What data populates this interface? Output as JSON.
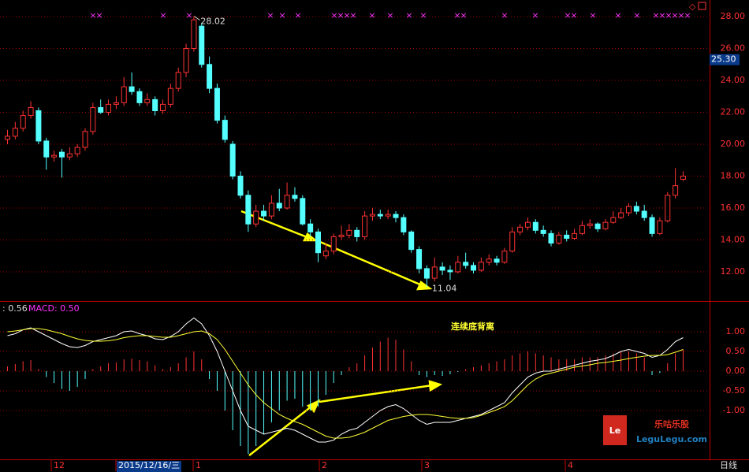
{
  "chart_data": [
    {
      "type": "candlestick",
      "up_color": "#ff3232",
      "down_color": "#54ffff",
      "grid": true,
      "ylim": [
        10.17,
        29.04
      ],
      "yticks": [
        {
          "value": 12,
          "label": "12.00"
        },
        {
          "value": 14,
          "label": "14.00"
        },
        {
          "value": 16,
          "label": "16.00"
        },
        {
          "value": 18,
          "label": "18.00"
        },
        {
          "value": 20,
          "label": "20.00"
        },
        {
          "value": 22,
          "label": "22.00"
        },
        {
          "value": 24,
          "label": "24.00"
        },
        {
          "value": 26,
          "label": "26.00"
        },
        {
          "value": 28,
          "label": "28.00"
        }
      ],
      "price_marker": {
        "value": 25.3,
        "label": "25.30"
      },
      "high_label": "28.02",
      "low_label": "11.04",
      "annotation": "连续底背离",
      "xlabels": [
        "12",
        "2015/12/16/三",
        "1",
        "2",
        "3",
        "4"
      ],
      "period": "日线",
      "candles": [
        [
          20.3,
          20.9,
          20.0,
          20.5
        ],
        [
          20.5,
          21.4,
          20.3,
          21.0
        ],
        [
          21.0,
          22.1,
          20.8,
          21.8
        ],
        [
          21.8,
          22.7,
          21.6,
          22.3
        ],
        [
          22.1,
          22.3,
          20.0,
          20.2
        ],
        [
          20.2,
          20.4,
          18.4,
          19.2
        ],
        [
          19.2,
          19.6,
          18.9,
          19.3
        ],
        [
          19.5,
          19.7,
          17.9,
          19.2
        ],
        [
          19.2,
          19.8,
          19.0,
          19.4
        ],
        [
          19.4,
          20.0,
          19.2,
          19.8
        ],
        [
          19.8,
          21.0,
          19.6,
          20.8
        ],
        [
          20.8,
          22.6,
          20.6,
          22.3
        ],
        [
          22.3,
          22.8,
          21.9,
          22.0
        ],
        [
          22.0,
          22.8,
          21.8,
          22.5
        ],
        [
          22.5,
          23.0,
          22.2,
          22.6
        ],
        [
          22.6,
          24.2,
          22.4,
          23.6
        ],
        [
          23.6,
          24.5,
          23.1,
          23.3
        ],
        [
          23.3,
          23.5,
          22.4,
          22.6
        ],
        [
          22.6,
          23.2,
          22.4,
          22.8
        ],
        [
          22.8,
          23.0,
          21.8,
          22.1
        ],
        [
          22.1,
          22.8,
          21.9,
          22.5
        ],
        [
          22.5,
          23.8,
          22.3,
          23.5
        ],
        [
          23.5,
          24.8,
          23.3,
          24.5
        ],
        [
          24.5,
          26.3,
          24.2,
          26.0
        ],
        [
          26.0,
          28.02,
          25.8,
          27.8
        ],
        [
          27.4,
          27.6,
          24.8,
          25.0
        ],
        [
          25.0,
          25.5,
          23.2,
          23.5
        ],
        [
          23.5,
          23.8,
          21.3,
          21.5
        ],
        [
          21.5,
          21.8,
          20.1,
          20.3
        ],
        [
          20.0,
          20.2,
          17.8,
          18.0
        ],
        [
          18.0,
          18.3,
          16.6,
          16.8
        ],
        [
          16.8,
          17.1,
          14.5,
          15.0
        ],
        [
          15.0,
          16.2,
          14.8,
          15.8
        ],
        [
          15.8,
          16.2,
          15.2,
          15.5
        ],
        [
          15.5,
          16.8,
          15.3,
          16.3
        ],
        [
          16.3,
          17.2,
          15.8,
          16.0
        ],
        [
          16.0,
          17.6,
          15.9,
          16.8
        ],
        [
          16.8,
          17.3,
          16.4,
          16.6
        ],
        [
          16.6,
          16.8,
          14.9,
          15.0
        ],
        [
          15.0,
          15.3,
          14.2,
          14.5
        ],
        [
          14.5,
          14.7,
          12.6,
          13.2
        ],
        [
          13.0,
          13.8,
          12.8,
          13.3
        ],
        [
          13.3,
          14.4,
          13.1,
          14.2
        ],
        [
          14.2,
          14.9,
          14.0,
          14.3
        ],
        [
          14.3,
          15.0,
          14.1,
          14.6
        ],
        [
          14.6,
          14.8,
          13.9,
          14.2
        ],
        [
          14.2,
          15.8,
          14.0,
          15.5
        ],
        [
          15.5,
          16.0,
          15.2,
          15.6
        ],
        [
          15.6,
          15.9,
          15.3,
          15.5
        ],
        [
          15.5,
          15.9,
          15.3,
          15.6
        ],
        [
          15.6,
          15.8,
          15.1,
          15.4
        ],
        [
          15.4,
          15.6,
          14.3,
          14.5
        ],
        [
          14.5,
          14.6,
          13.2,
          13.4
        ],
        [
          13.4,
          13.6,
          11.9,
          12.2
        ],
        [
          12.2,
          12.4,
          11.04,
          11.6
        ],
        [
          11.6,
          12.9,
          11.4,
          12.3
        ],
        [
          12.3,
          12.6,
          11.8,
          12.1
        ],
        [
          12.1,
          12.4,
          11.5,
          12.0
        ],
        [
          12.0,
          13.0,
          11.9,
          12.6
        ],
        [
          12.6,
          13.2,
          12.2,
          12.4
        ],
        [
          12.4,
          12.6,
          11.9,
          12.1
        ],
        [
          12.1,
          12.9,
          12.0,
          12.6
        ],
        [
          12.6,
          13.1,
          12.4,
          12.8
        ],
        [
          12.8,
          13.0,
          12.4,
          12.6
        ],
        [
          12.6,
          13.5,
          12.5,
          13.3
        ],
        [
          13.3,
          14.8,
          13.2,
          14.5
        ],
        [
          14.5,
          15.0,
          14.3,
          14.8
        ],
        [
          14.8,
          15.4,
          14.6,
          15.1
        ],
        [
          15.1,
          15.3,
          14.4,
          14.6
        ],
        [
          14.6,
          14.9,
          14.2,
          14.4
        ],
        [
          14.4,
          14.6,
          13.6,
          13.8
        ],
        [
          13.8,
          14.5,
          13.7,
          14.3
        ],
        [
          14.3,
          14.6,
          13.9,
          14.1
        ],
        [
          14.1,
          14.7,
          14.0,
          14.4
        ],
        [
          14.4,
          15.2,
          14.3,
          14.9
        ],
        [
          14.9,
          15.3,
          14.7,
          15.0
        ],
        [
          15.0,
          15.1,
          14.5,
          14.7
        ],
        [
          14.7,
          15.3,
          14.6,
          15.1
        ],
        [
          15.1,
          15.8,
          15.0,
          15.4
        ],
        [
          15.4,
          16.0,
          15.3,
          15.7
        ],
        [
          15.7,
          16.3,
          15.5,
          16.1
        ],
        [
          16.1,
          16.4,
          15.6,
          15.8
        ],
        [
          15.8,
          16.2,
          15.2,
          15.4
        ],
        [
          15.4,
          15.6,
          14.2,
          14.4
        ],
        [
          14.4,
          15.4,
          14.3,
          15.2
        ],
        [
          15.2,
          17.0,
          15.1,
          16.8
        ],
        [
          16.8,
          18.5,
          16.6,
          17.4
        ],
        [
          17.8,
          18.3,
          17.7,
          18.0
        ]
      ]
    },
    {
      "type": "macd",
      "grid": true,
      "ylim": [
        -2.24,
        1.78
      ],
      "legend_dif": ": 0.56",
      "legend_macd": "MACD: 0.50",
      "yticks": [
        {
          "value": -1,
          "label": "-1.00"
        },
        {
          "value": -0.5,
          "label": "-0.50"
        },
        {
          "value": 0,
          "label": "0.00"
        },
        {
          "value": 0.5,
          "label": "0.50"
        },
        {
          "value": 1,
          "label": "1.00"
        }
      ],
      "bar_up_color": "#ff3232",
      "bar_down_color": "#54ffff",
      "bars": [
        0.12,
        0.18,
        0.25,
        0.28,
        0.05,
        -0.15,
        -0.3,
        -0.45,
        -0.5,
        -0.4,
        -0.2,
        0.05,
        0.12,
        0.2,
        0.22,
        0.3,
        0.32,
        0.28,
        0.25,
        0.15,
        0.05,
        0.1,
        0.2,
        0.35,
        0.5,
        0.3,
        -0.2,
        -0.5,
        -1.0,
        -1.5,
        -1.9,
        -2.1,
        -1.9,
        -1.6,
        -1.3,
        -1.0,
        -0.75,
        -0.7,
        -0.9,
        -1.0,
        -0.9,
        -0.6,
        -0.3,
        -0.1,
        0.1,
        0.2,
        0.4,
        0.6,
        0.75,
        0.85,
        0.8,
        0.55,
        0.25,
        -0.1,
        -0.15,
        -0.1,
        -0.12,
        -0.08,
        -0.02,
        0.05,
        0.1,
        0.15,
        0.2,
        0.25,
        0.3,
        0.4,
        0.45,
        0.5,
        0.45,
        0.4,
        0.35,
        0.3,
        0.3,
        0.3,
        0.35,
        0.35,
        0.35,
        0.4,
        0.45,
        0.5,
        0.5,
        0.45,
        0.35,
        -0.1,
        -0.05,
        0.2,
        0.45,
        0.55
      ],
      "series": [
        {
          "color": "#ffffff",
          "values": [
            0.9,
            0.95,
            1.05,
            1.1,
            1.0,
            0.9,
            0.8,
            0.7,
            0.62,
            0.6,
            0.65,
            0.75,
            0.8,
            0.85,
            0.9,
            1.0,
            1.02,
            0.95,
            0.9,
            0.82,
            0.8,
            0.88,
            1.0,
            1.2,
            1.35,
            1.2,
            0.9,
            0.5,
            0.0,
            -0.5,
            -1.0,
            -1.4,
            -1.5,
            -1.6,
            -1.55,
            -1.5,
            -1.45,
            -1.5,
            -1.6,
            -1.7,
            -1.8,
            -1.8,
            -1.75,
            -1.6,
            -1.5,
            -1.45,
            -1.3,
            -1.15,
            -1.0,
            -0.9,
            -0.85,
            -0.95,
            -1.1,
            -1.25,
            -1.35,
            -1.3,
            -1.3,
            -1.3,
            -1.25,
            -1.2,
            -1.15,
            -1.1,
            -1.0,
            -0.9,
            -0.8,
            -0.55,
            -0.35,
            -0.15,
            -0.05,
            0.0,
            0.0,
            0.05,
            0.1,
            0.15,
            0.2,
            0.25,
            0.28,
            0.32,
            0.4,
            0.5,
            0.55,
            0.5,
            0.45,
            0.35,
            0.4,
            0.55,
            0.75,
            0.85
          ]
        },
        {
          "color": "#ffff33",
          "values": [
            1.0,
            1.02,
            1.05,
            1.08,
            1.08,
            1.05,
            1.0,
            0.95,
            0.88,
            0.82,
            0.78,
            0.76,
            0.76,
            0.77,
            0.8,
            0.85,
            0.88,
            0.9,
            0.9,
            0.88,
            0.86,
            0.86,
            0.9,
            0.95,
            1.0,
            1.02,
            0.95,
            0.8,
            0.55,
            0.25,
            -0.05,
            -0.35,
            -0.6,
            -0.8,
            -0.95,
            -1.1,
            -1.2,
            -1.28,
            -1.35,
            -1.45,
            -1.55,
            -1.65,
            -1.7,
            -1.7,
            -1.68,
            -1.62,
            -1.55,
            -1.45,
            -1.35,
            -1.25,
            -1.2,
            -1.15,
            -1.12,
            -1.1,
            -1.1,
            -1.12,
            -1.15,
            -1.18,
            -1.2,
            -1.2,
            -1.18,
            -1.12,
            -1.05,
            -0.98,
            -0.9,
            -0.75,
            -0.55,
            -0.35,
            -0.2,
            -0.1,
            -0.05,
            0.0,
            0.05,
            0.1,
            0.13,
            0.16,
            0.2,
            0.22,
            0.25,
            0.28,
            0.32,
            0.35,
            0.38,
            0.4,
            0.4,
            0.42,
            0.48,
            0.55
          ]
        }
      ]
    }
  ],
  "logo": {
    "mark": "Le",
    "name": "乐咕乐股",
    "site": "LeguLegu.com"
  }
}
